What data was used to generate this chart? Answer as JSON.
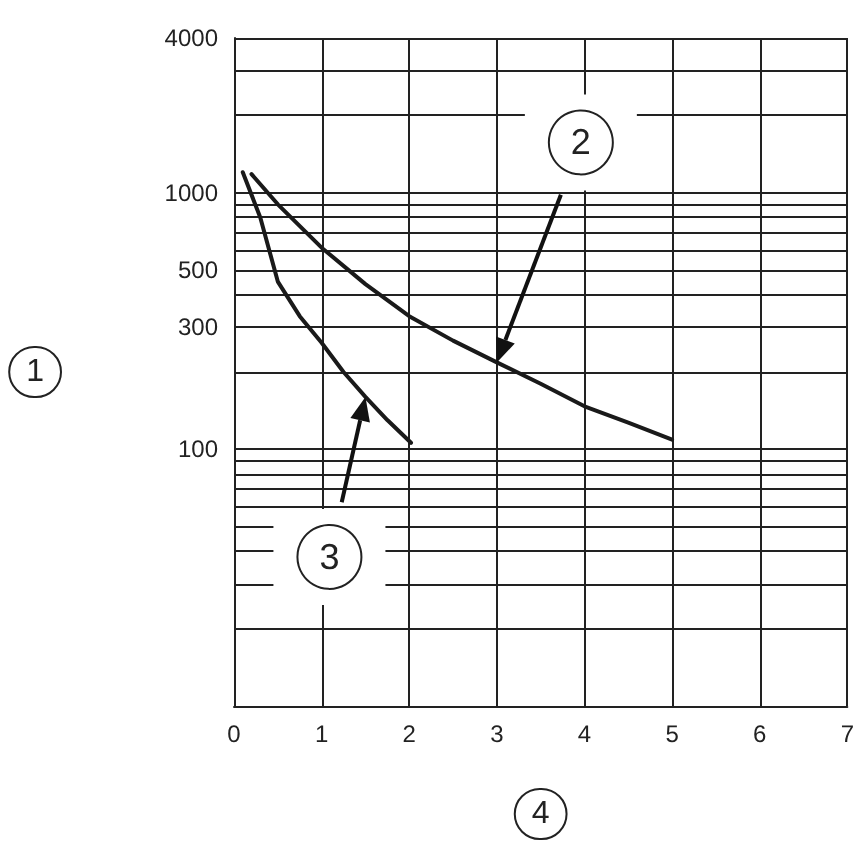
{
  "chart_data": {
    "type": "line",
    "xlabel": "4",
    "ylabel": "1",
    "log": "y",
    "grid": true,
    "marker": "none",
    "line_style": "solid",
    "xlim": [
      0,
      7
    ],
    "xticks": [
      0,
      1,
      2,
      3,
      4,
      5,
      6,
      7
    ],
    "ylim": [
      10,
      4000
    ],
    "yticks": [
      {
        "value": 20,
        "label": null
      },
      {
        "value": 30,
        "label": null
      },
      {
        "value": 40,
        "label": null
      },
      {
        "value": 50,
        "label": null
      },
      {
        "value": 60,
        "label": null
      },
      {
        "value": 70,
        "label": null
      },
      {
        "value": 80,
        "label": null
      },
      {
        "value": 90,
        "label": null
      },
      100,
      {
        "value": 200,
        "label": null
      },
      300,
      {
        "value": 400,
        "label": null
      },
      500,
      {
        "value": 600,
        "label": null
      },
      {
        "value": 700,
        "label": null
      },
      {
        "value": 800,
        "label": null
      },
      {
        "value": 900,
        "label": null
      },
      1000,
      {
        "value": 2000,
        "label": null
      },
      {
        "value": 3000,
        "label": null
      },
      4000
    ],
    "series": [
      {
        "name": "2",
        "color": "#1a1a1a",
        "x": [
          0.2,
          0.5,
          1,
          1.5,
          2,
          2.5,
          3,
          3.5,
          4,
          4.5,
          5
        ],
        "values": [
          1180,
          900,
          610,
          440,
          330,
          265,
          218,
          180,
          147,
          127,
          109
        ]
      },
      {
        "name": "3",
        "color": "#1a1a1a",
        "x": [
          0.1,
          0.3,
          0.5,
          0.75,
          1,
          1.25,
          1.5,
          1.75,
          2.02
        ],
        "values": [
          1200,
          800,
          450,
          330,
          260,
          200,
          160,
          130,
          106
        ]
      }
    ]
  }
}
